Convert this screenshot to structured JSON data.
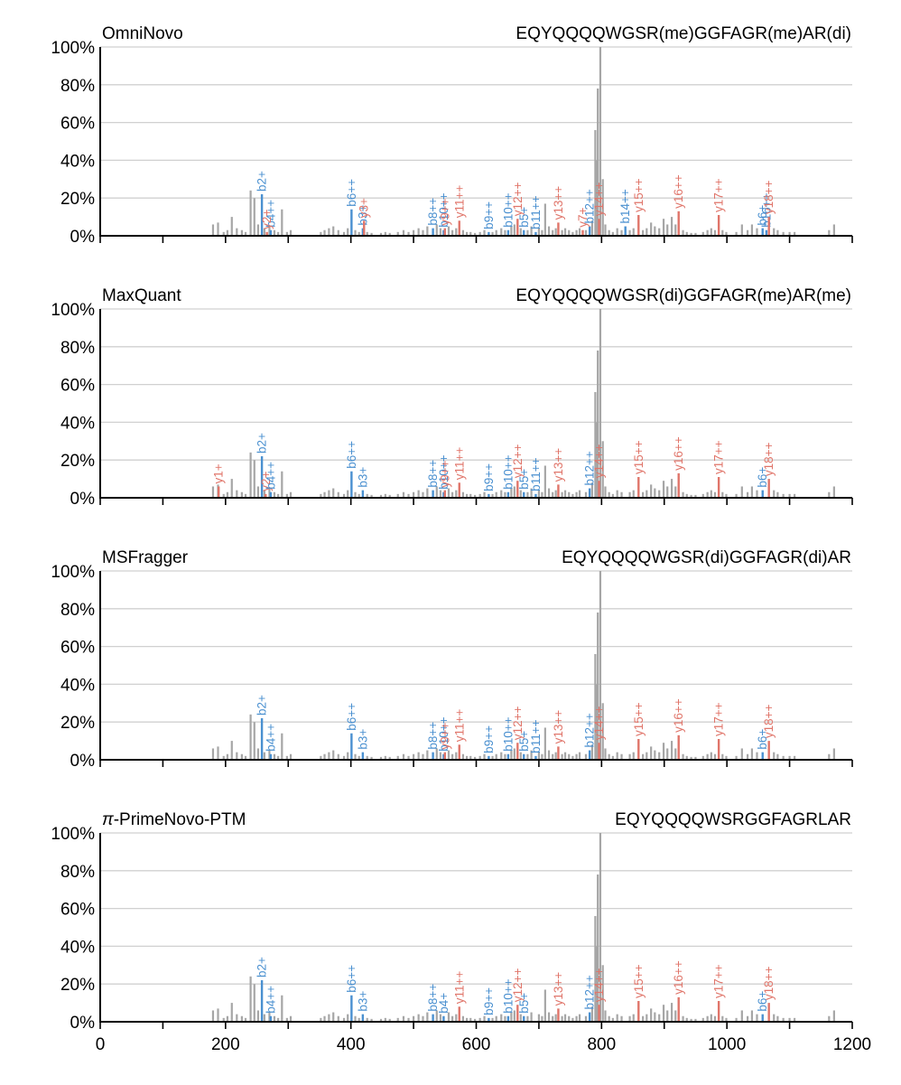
{
  "colors": {
    "b_ion": "#4a90d0",
    "y_ion": "#e0756a",
    "peak": "#a6a6a6",
    "grid": "#d0d0d0",
    "axis": "#000000"
  },
  "chart_data": [
    {
      "type": "bar",
      "panel_label": "OmniNovo",
      "sequence": "EQYQQQQWGSR(me)GGFAGR(me)AR(di)",
      "xlim": [
        0,
        1200
      ],
      "ylim": [
        0,
        100
      ],
      "x_ticks": [
        "0",
        "200",
        "400",
        "600",
        "800",
        "1000",
        "1200"
      ],
      "y_ticks": [
        "0%",
        "20%",
        "40%",
        "60%",
        "80%",
        "100%"
      ],
      "grid": true,
      "annotations": [
        {
          "label": "b2+",
          "x": 258,
          "y": 22,
          "ion": "b"
        },
        {
          "label": "b4++",
          "x": 272,
          "y": 3,
          "ion": "b"
        },
        {
          "label": "y2+",
          "x": 266,
          "y": 2,
          "ion": "y"
        },
        {
          "label": "b6++",
          "x": 401,
          "y": 14,
          "ion": "b"
        },
        {
          "label": "b3+",
          "x": 419,
          "y": 4,
          "ion": "b"
        },
        {
          "label": "y3+",
          "x": 421,
          "y": 8,
          "ion": "y"
        },
        {
          "label": "b8++",
          "x": 531,
          "y": 4,
          "ion": "b"
        },
        {
          "label": "b10++",
          "x": 548,
          "y": 3,
          "ion": "b"
        },
        {
          "label": "y9++",
          "x": 550,
          "y": 4,
          "ion": "y"
        },
        {
          "label": "y11++",
          "x": 573,
          "y": 8,
          "ion": "y"
        },
        {
          "label": "b9++",
          "x": 620,
          "y": 2,
          "ion": "b"
        },
        {
          "label": "b10++",
          "x": 651,
          "y": 3,
          "ion": "b"
        },
        {
          "label": "y12++",
          "x": 666,
          "y": 9,
          "ion": "y"
        },
        {
          "label": "b5+",
          "x": 676,
          "y": 3,
          "ion": "b"
        },
        {
          "label": "b11++",
          "x": 695,
          "y": 2,
          "ion": "b"
        },
        {
          "label": "y13++",
          "x": 731,
          "y": 7,
          "ion": "y"
        },
        {
          "label": "b12++",
          "x": 781,
          "y": 5,
          "ion": "b"
        },
        {
          "label": "y7+",
          "x": 770,
          "y": 3,
          "ion": "y"
        },
        {
          "label": "y14++",
          "x": 796,
          "y": 9,
          "ion": "y"
        },
        {
          "label": "b14++",
          "x": 838,
          "y": 5,
          "ion": "b"
        },
        {
          "label": "y15++",
          "x": 859,
          "y": 11,
          "ion": "y"
        },
        {
          "label": "y16++",
          "x": 923,
          "y": 13,
          "ion": "y"
        },
        {
          "label": "y17++",
          "x": 987,
          "y": 11,
          "ion": "y"
        },
        {
          "label": "b6+",
          "x": 1057,
          "y": 4,
          "ion": "b"
        },
        {
          "label": "b16++",
          "x": 1063,
          "y": 3,
          "ion": "b"
        },
        {
          "label": "y18++",
          "x": 1067,
          "y": 10,
          "ion": "y"
        }
      ]
    },
    {
      "type": "bar",
      "panel_label": "MaxQuant",
      "sequence": "EQYQQQQWGSR(di)GGFAGR(me)AR(me)",
      "xlim": [
        0,
        1200
      ],
      "ylim": [
        0,
        100
      ],
      "x_ticks": [
        "0",
        "200",
        "400",
        "600",
        "800",
        "1000",
        "1200"
      ],
      "y_ticks": [
        "0%",
        "20%",
        "40%",
        "60%",
        "80%",
        "100%"
      ],
      "grid": true,
      "annotations": [
        {
          "label": "y1+",
          "x": 189,
          "y": 6,
          "ion": "y"
        },
        {
          "label": "b2+",
          "x": 258,
          "y": 22,
          "ion": "b"
        },
        {
          "label": "y2+",
          "x": 264,
          "y": 2,
          "ion": "y"
        },
        {
          "label": "b4++",
          "x": 272,
          "y": 3,
          "ion": "b"
        },
        {
          "label": "b6++",
          "x": 401,
          "y": 14,
          "ion": "b"
        },
        {
          "label": "b3+",
          "x": 419,
          "y": 4,
          "ion": "b"
        },
        {
          "label": "b8++",
          "x": 531,
          "y": 4,
          "ion": "b"
        },
        {
          "label": "b10++",
          "x": 548,
          "y": 3,
          "ion": "b"
        },
        {
          "label": "y9++",
          "x": 550,
          "y": 4,
          "ion": "y"
        },
        {
          "label": "y11++",
          "x": 573,
          "y": 8,
          "ion": "y"
        },
        {
          "label": "b9++",
          "x": 620,
          "y": 2,
          "ion": "b"
        },
        {
          "label": "b10++",
          "x": 651,
          "y": 3,
          "ion": "b"
        },
        {
          "label": "y12++",
          "x": 666,
          "y": 9,
          "ion": "y"
        },
        {
          "label": "b5+",
          "x": 676,
          "y": 3,
          "ion": "b"
        },
        {
          "label": "b11++",
          "x": 695,
          "y": 2,
          "ion": "b"
        },
        {
          "label": "y13++",
          "x": 731,
          "y": 7,
          "ion": "y"
        },
        {
          "label": "b12++",
          "x": 781,
          "y": 5,
          "ion": "b"
        },
        {
          "label": "y14++",
          "x": 796,
          "y": 9,
          "ion": "y"
        },
        {
          "label": "y15++",
          "x": 859,
          "y": 11,
          "ion": "y"
        },
        {
          "label": "y16++",
          "x": 923,
          "y": 13,
          "ion": "y"
        },
        {
          "label": "y17++",
          "x": 987,
          "y": 11,
          "ion": "y"
        },
        {
          "label": "b6+",
          "x": 1057,
          "y": 4,
          "ion": "b"
        },
        {
          "label": "y18++",
          "x": 1067,
          "y": 10,
          "ion": "y"
        }
      ]
    },
    {
      "type": "bar",
      "panel_label": "MSFragger",
      "sequence": "EQYQQQQWGSR(di)GGFAGR(di)AR",
      "xlim": [
        0,
        1200
      ],
      "ylim": [
        0,
        100
      ],
      "x_ticks": [
        "0",
        "200",
        "400",
        "600",
        "800",
        "1000",
        "1200"
      ],
      "y_ticks": [
        "0%",
        "20%",
        "40%",
        "60%",
        "80%",
        "100%"
      ],
      "grid": true,
      "annotations": [
        {
          "label": "b2+",
          "x": 258,
          "y": 22,
          "ion": "b"
        },
        {
          "label": "b4++",
          "x": 272,
          "y": 3,
          "ion": "b"
        },
        {
          "label": "b6++",
          "x": 401,
          "y": 14,
          "ion": "b"
        },
        {
          "label": "b3+",
          "x": 419,
          "y": 4,
          "ion": "b"
        },
        {
          "label": "b8++",
          "x": 531,
          "y": 4,
          "ion": "b"
        },
        {
          "label": "b10++",
          "x": 548,
          "y": 3,
          "ion": "b"
        },
        {
          "label": "y9++",
          "x": 550,
          "y": 4,
          "ion": "y"
        },
        {
          "label": "y11++",
          "x": 573,
          "y": 8,
          "ion": "y"
        },
        {
          "label": "b9++",
          "x": 620,
          "y": 2,
          "ion": "b"
        },
        {
          "label": "b10++",
          "x": 651,
          "y": 3,
          "ion": "b"
        },
        {
          "label": "y12++",
          "x": 666,
          "y": 9,
          "ion": "y"
        },
        {
          "label": "b5+",
          "x": 676,
          "y": 3,
          "ion": "b"
        },
        {
          "label": "b11++",
          "x": 695,
          "y": 2,
          "ion": "b"
        },
        {
          "label": "y13++",
          "x": 731,
          "y": 7,
          "ion": "y"
        },
        {
          "label": "b12++",
          "x": 781,
          "y": 5,
          "ion": "b"
        },
        {
          "label": "y14++",
          "x": 796,
          "y": 9,
          "ion": "y"
        },
        {
          "label": "y15++",
          "x": 859,
          "y": 11,
          "ion": "y"
        },
        {
          "label": "y16++",
          "x": 923,
          "y": 13,
          "ion": "y"
        },
        {
          "label": "y17++",
          "x": 987,
          "y": 11,
          "ion": "y"
        },
        {
          "label": "b6+",
          "x": 1057,
          "y": 4,
          "ion": "b"
        },
        {
          "label": "y18++",
          "x": 1067,
          "y": 10,
          "ion": "y"
        }
      ]
    },
    {
      "type": "bar",
      "panel_label": "π-PrimeNovo-PTM",
      "sequence": "EQYQQQQWSRGGFAGRLAR",
      "xlim": [
        0,
        1200
      ],
      "ylim": [
        0,
        100
      ],
      "x_ticks": [
        "0",
        "200",
        "400",
        "600",
        "800",
        "1000",
        "1200"
      ],
      "y_ticks": [
        "0%",
        "20%",
        "40%",
        "60%",
        "80%",
        "100%"
      ],
      "grid": true,
      "annotations": [
        {
          "label": "b2+",
          "x": 258,
          "y": 22,
          "ion": "b"
        },
        {
          "label": "b4++",
          "x": 272,
          "y": 3,
          "ion": "b"
        },
        {
          "label": "b6++",
          "x": 401,
          "y": 14,
          "ion": "b"
        },
        {
          "label": "b3+",
          "x": 419,
          "y": 4,
          "ion": "b"
        },
        {
          "label": "b8++",
          "x": 531,
          "y": 4,
          "ion": "b"
        },
        {
          "label": "b4+",
          "x": 548,
          "y": 3,
          "ion": "b"
        },
        {
          "label": "y11++",
          "x": 573,
          "y": 8,
          "ion": "y"
        },
        {
          "label": "b9++",
          "x": 620,
          "y": 2,
          "ion": "b"
        },
        {
          "label": "b10++",
          "x": 651,
          "y": 3,
          "ion": "b"
        },
        {
          "label": "y12++",
          "x": 666,
          "y": 9,
          "ion": "y"
        },
        {
          "label": "b5+",
          "x": 676,
          "y": 3,
          "ion": "b"
        },
        {
          "label": "y13++",
          "x": 731,
          "y": 7,
          "ion": "y"
        },
        {
          "label": "b12++",
          "x": 781,
          "y": 5,
          "ion": "b"
        },
        {
          "label": "y14++",
          "x": 796,
          "y": 9,
          "ion": "y"
        },
        {
          "label": "y15++",
          "x": 859,
          "y": 11,
          "ion": "y"
        },
        {
          "label": "y16++",
          "x": 923,
          "y": 13,
          "ion": "y"
        },
        {
          "label": "y17++",
          "x": 987,
          "y": 11,
          "ion": "y"
        },
        {
          "label": "b6+",
          "x": 1057,
          "y": 4,
          "ion": "b"
        },
        {
          "label": "y18++",
          "x": 1067,
          "y": 10,
          "ion": "y"
        }
      ]
    }
  ],
  "peaks": [
    {
      "x": 180,
      "y": 6
    },
    {
      "x": 188,
      "y": 7
    },
    {
      "x": 197,
      "y": 2
    },
    {
      "x": 203,
      "y": 3
    },
    {
      "x": 210,
      "y": 10
    },
    {
      "x": 218,
      "y": 4
    },
    {
      "x": 226,
      "y": 3
    },
    {
      "x": 232,
      "y": 2
    },
    {
      "x": 240,
      "y": 24
    },
    {
      "x": 246,
      "y": 20
    },
    {
      "x": 252,
      "y": 6
    },
    {
      "x": 262,
      "y": 4
    },
    {
      "x": 270,
      "y": 5
    },
    {
      "x": 278,
      "y": 3
    },
    {
      "x": 284,
      "y": 2
    },
    {
      "x": 290,
      "y": 14
    },
    {
      "x": 298,
      "y": 2
    },
    {
      "x": 304,
      "y": 3
    },
    {
      "x": 352,
      "y": 2
    },
    {
      "x": 358,
      "y": 3
    },
    {
      "x": 365,
      "y": 4
    },
    {
      "x": 372,
      "y": 5
    },
    {
      "x": 380,
      "y": 3
    },
    {
      "x": 389,
      "y": 2
    },
    {
      "x": 395,
      "y": 4
    },
    {
      "x": 407,
      "y": 3
    },
    {
      "x": 413,
      "y": 2
    },
    {
      "x": 426,
      "y": 2
    },
    {
      "x": 433,
      "y": 1.5
    },
    {
      "x": 448,
      "y": 1.5
    },
    {
      "x": 455,
      "y": 2
    },
    {
      "x": 462,
      "y": 1.5
    },
    {
      "x": 475,
      "y": 2
    },
    {
      "x": 484,
      "y": 3
    },
    {
      "x": 492,
      "y": 2
    },
    {
      "x": 500,
      "y": 3
    },
    {
      "x": 508,
      "y": 4
    },
    {
      "x": 515,
      "y": 3
    },
    {
      "x": 522,
      "y": 5
    },
    {
      "x": 537,
      "y": 6
    },
    {
      "x": 543,
      "y": 4
    },
    {
      "x": 556,
      "y": 5
    },
    {
      "x": 562,
      "y": 3
    },
    {
      "x": 568,
      "y": 4
    },
    {
      "x": 579,
      "y": 3
    },
    {
      "x": 585,
      "y": 2
    },
    {
      "x": 591,
      "y": 2
    },
    {
      "x": 598,
      "y": 1.5
    },
    {
      "x": 606,
      "y": 2
    },
    {
      "x": 613,
      "y": 3
    },
    {
      "x": 626,
      "y": 2
    },
    {
      "x": 632,
      "y": 3
    },
    {
      "x": 640,
      "y": 4
    },
    {
      "x": 646,
      "y": 3
    },
    {
      "x": 656,
      "y": 5
    },
    {
      "x": 661,
      "y": 6
    },
    {
      "x": 671,
      "y": 4
    },
    {
      "x": 682,
      "y": 3
    },
    {
      "x": 688,
      "y": 5
    },
    {
      "x": 700,
      "y": 4
    },
    {
      "x": 705,
      "y": 3
    },
    {
      "x": 710,
      "y": 17
    },
    {
      "x": 716,
      "y": 5
    },
    {
      "x": 722,
      "y": 3
    },
    {
      "x": 727,
      "y": 4
    },
    {
      "x": 737,
      "y": 3
    },
    {
      "x": 742,
      "y": 4
    },
    {
      "x": 748,
      "y": 3
    },
    {
      "x": 754,
      "y": 2
    },
    {
      "x": 760,
      "y": 3
    },
    {
      "x": 765,
      "y": 4
    },
    {
      "x": 775,
      "y": 3
    },
    {
      "x": 785,
      "y": 8
    },
    {
      "x": 790,
      "y": 56
    },
    {
      "x": 792,
      "y": 40
    },
    {
      "x": 794,
      "y": 78
    },
    {
      "x": 798,
      "y": 100
    },
    {
      "x": 802,
      "y": 30
    },
    {
      "x": 806,
      "y": 6
    },
    {
      "x": 812,
      "y": 3
    },
    {
      "x": 818,
      "y": 2
    },
    {
      "x": 825,
      "y": 4
    },
    {
      "x": 832,
      "y": 3
    },
    {
      "x": 845,
      "y": 3
    },
    {
      "x": 851,
      "y": 4
    },
    {
      "x": 866,
      "y": 3
    },
    {
      "x": 872,
      "y": 4
    },
    {
      "x": 879,
      "y": 7
    },
    {
      "x": 885,
      "y": 5
    },
    {
      "x": 892,
      "y": 4
    },
    {
      "x": 899,
      "y": 9
    },
    {
      "x": 905,
      "y": 6
    },
    {
      "x": 912,
      "y": 10
    },
    {
      "x": 918,
      "y": 6
    },
    {
      "x": 930,
      "y": 3
    },
    {
      "x": 936,
      "y": 2
    },
    {
      "x": 943,
      "y": 1.5
    },
    {
      "x": 950,
      "y": 1.5
    },
    {
      "x": 962,
      "y": 2
    },
    {
      "x": 969,
      "y": 3
    },
    {
      "x": 975,
      "y": 4
    },
    {
      "x": 981,
      "y": 3
    },
    {
      "x": 993,
      "y": 3
    },
    {
      "x": 999,
      "y": 2
    },
    {
      "x": 1015,
      "y": 2
    },
    {
      "x": 1024,
      "y": 6
    },
    {
      "x": 1033,
      "y": 3
    },
    {
      "x": 1040,
      "y": 6
    },
    {
      "x": 1048,
      "y": 4
    },
    {
      "x": 1075,
      "y": 4
    },
    {
      "x": 1081,
      "y": 3
    },
    {
      "x": 1090,
      "y": 2
    },
    {
      "x": 1100,
      "y": 2
    },
    {
      "x": 1108,
      "y": 2
    },
    {
      "x": 1163,
      "y": 3
    },
    {
      "x": 1171,
      "y": 6
    }
  ]
}
